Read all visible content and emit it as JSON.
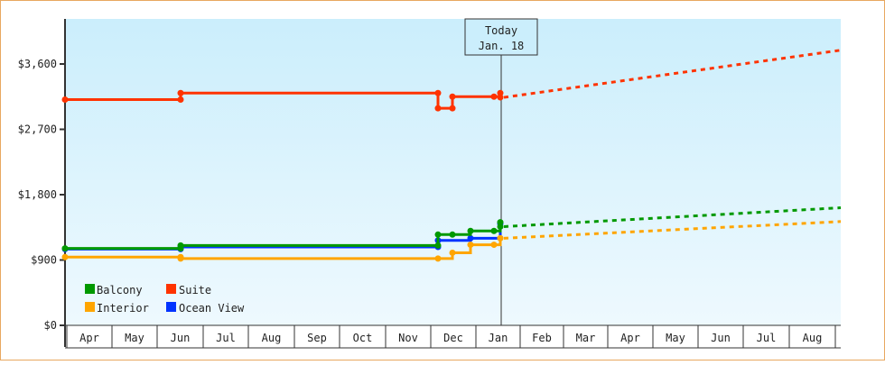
{
  "chart_data": {
    "type": "line",
    "title": "",
    "xlabel": "",
    "ylabel": "",
    "ylim": [
      0,
      4500
    ],
    "yticks": [
      "$0",
      "$900",
      "$1,800",
      "$2,700",
      "$3,600"
    ],
    "ytick_values": [
      0,
      900,
      1800,
      2700,
      3600
    ],
    "x_months": [
      "Apr",
      "May",
      "Jun",
      "Jul",
      "Aug",
      "Sep",
      "Oct",
      "Nov",
      "Dec",
      "Jan",
      "Feb",
      "Mar",
      "Apr",
      "May",
      "Jun",
      "Jul",
      "Aug"
    ],
    "today_marker": {
      "line1": "Today",
      "line2": "Jan. 18"
    },
    "legend": [
      {
        "name": "Balcony",
        "color": "#009900"
      },
      {
        "name": "Suite",
        "color": "#ff3300"
      },
      {
        "name": "Interior",
        "color": "#ffa500"
      },
      {
        "name": "Ocean View",
        "color": "#0033ff"
      }
    ],
    "series": [
      {
        "name": "Suite",
        "color": "#ff3300",
        "historical": [
          {
            "date": "Apr 1",
            "value": 3110
          },
          {
            "date": "Jun 1",
            "value": 3110
          },
          {
            "date": "Jun 1",
            "value": 3200
          },
          {
            "date": "Nov 28",
            "value": 3200
          },
          {
            "date": "Nov 28",
            "value": 2990
          },
          {
            "date": "Dec 8",
            "value": 2990
          },
          {
            "date": "Dec 8",
            "value": 3150
          },
          {
            "date": "Jan 17",
            "value": 3150
          },
          {
            "date": "Jan 18",
            "value": 3200
          }
        ],
        "forecast": [
          {
            "date": "Jan 18",
            "value": 3140
          },
          {
            "date": "Aug end",
            "value": 3790
          }
        ]
      },
      {
        "name": "Balcony",
        "color": "#009900",
        "historical": [
          {
            "date": "Apr 1",
            "value": 1060
          },
          {
            "date": "Jun 1",
            "value": 1060
          },
          {
            "date": "Jun 1",
            "value": 1100
          },
          {
            "date": "Nov 28",
            "value": 1100
          },
          {
            "date": "Nov 28",
            "value": 1250
          },
          {
            "date": "Dec 8",
            "value": 1250
          },
          {
            "date": "Dec 15",
            "value": 1300
          },
          {
            "date": "Jan 17",
            "value": 1300
          },
          {
            "date": "Jan 18",
            "value": 1420
          }
        ],
        "forecast": [
          {
            "date": "Jan 18",
            "value": 1360
          },
          {
            "date": "Aug end",
            "value": 1620
          }
        ]
      },
      {
        "name": "Ocean View",
        "color": "#0033ff",
        "historical": [
          {
            "date": "Apr 1",
            "value": 1050
          },
          {
            "date": "Jun 1",
            "value": 1050
          },
          {
            "date": "Jun 1",
            "value": 1080
          },
          {
            "date": "Nov 28",
            "value": 1080
          },
          {
            "date": "Nov 28",
            "value": 1170
          },
          {
            "date": "Dec 15",
            "value": 1200
          },
          {
            "date": "Jan 18",
            "value": 1400
          }
        ],
        "forecast": []
      },
      {
        "name": "Interior",
        "color": "#ffa500",
        "historical": [
          {
            "date": "Apr 1",
            "value": 940
          },
          {
            "date": "Jun 1",
            "value": 940
          },
          {
            "date": "Jun 1",
            "value": 920
          },
          {
            "date": "Nov 28",
            "value": 920
          },
          {
            "date": "Dec 8",
            "value": 1000
          },
          {
            "date": "Dec 15",
            "value": 1110
          },
          {
            "date": "Jan 17",
            "value": 1110
          },
          {
            "date": "Jan 18",
            "value": 1200
          }
        ],
        "forecast": [
          {
            "date": "Jan 18",
            "value": 1200
          },
          {
            "date": "Aug end",
            "value": 1430
          }
        ]
      }
    ]
  }
}
